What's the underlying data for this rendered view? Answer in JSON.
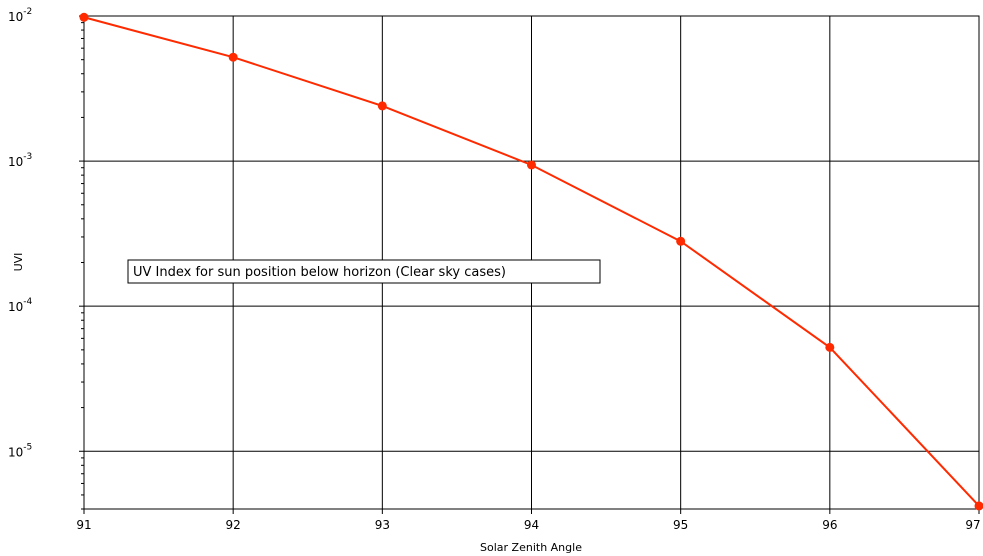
{
  "chart_data": {
    "type": "line",
    "xlabel": "Solar Zenith Angle",
    "ylabel": "UVI",
    "yscale": "log",
    "xlim": [
      91,
      97
    ],
    "ylim": [
      4e-06,
      0.01
    ],
    "grid": true,
    "x_ticks": [
      "91",
      "92",
      "93",
      "94",
      "95",
      "96",
      "97"
    ],
    "y_ticks": [
      {
        "value": 0.01,
        "base": "10",
        "exp": "-2"
      },
      {
        "value": 0.001,
        "base": "10",
        "exp": "-3"
      },
      {
        "value": 0.0001,
        "base": "10",
        "exp": "-4"
      },
      {
        "value": 1e-05,
        "base": "10",
        "exp": "-5"
      }
    ],
    "annotation": "UV Index for sun position below horizon (Clear sky cases)",
    "series": [
      {
        "color": "#ff2a00",
        "x": [
          91,
          92,
          93,
          94,
          95,
          96,
          97
        ],
        "y": [
          0.0098,
          0.0052,
          0.0024,
          0.00094,
          0.00028,
          5.2e-05,
          4.2e-06
        ]
      }
    ]
  }
}
